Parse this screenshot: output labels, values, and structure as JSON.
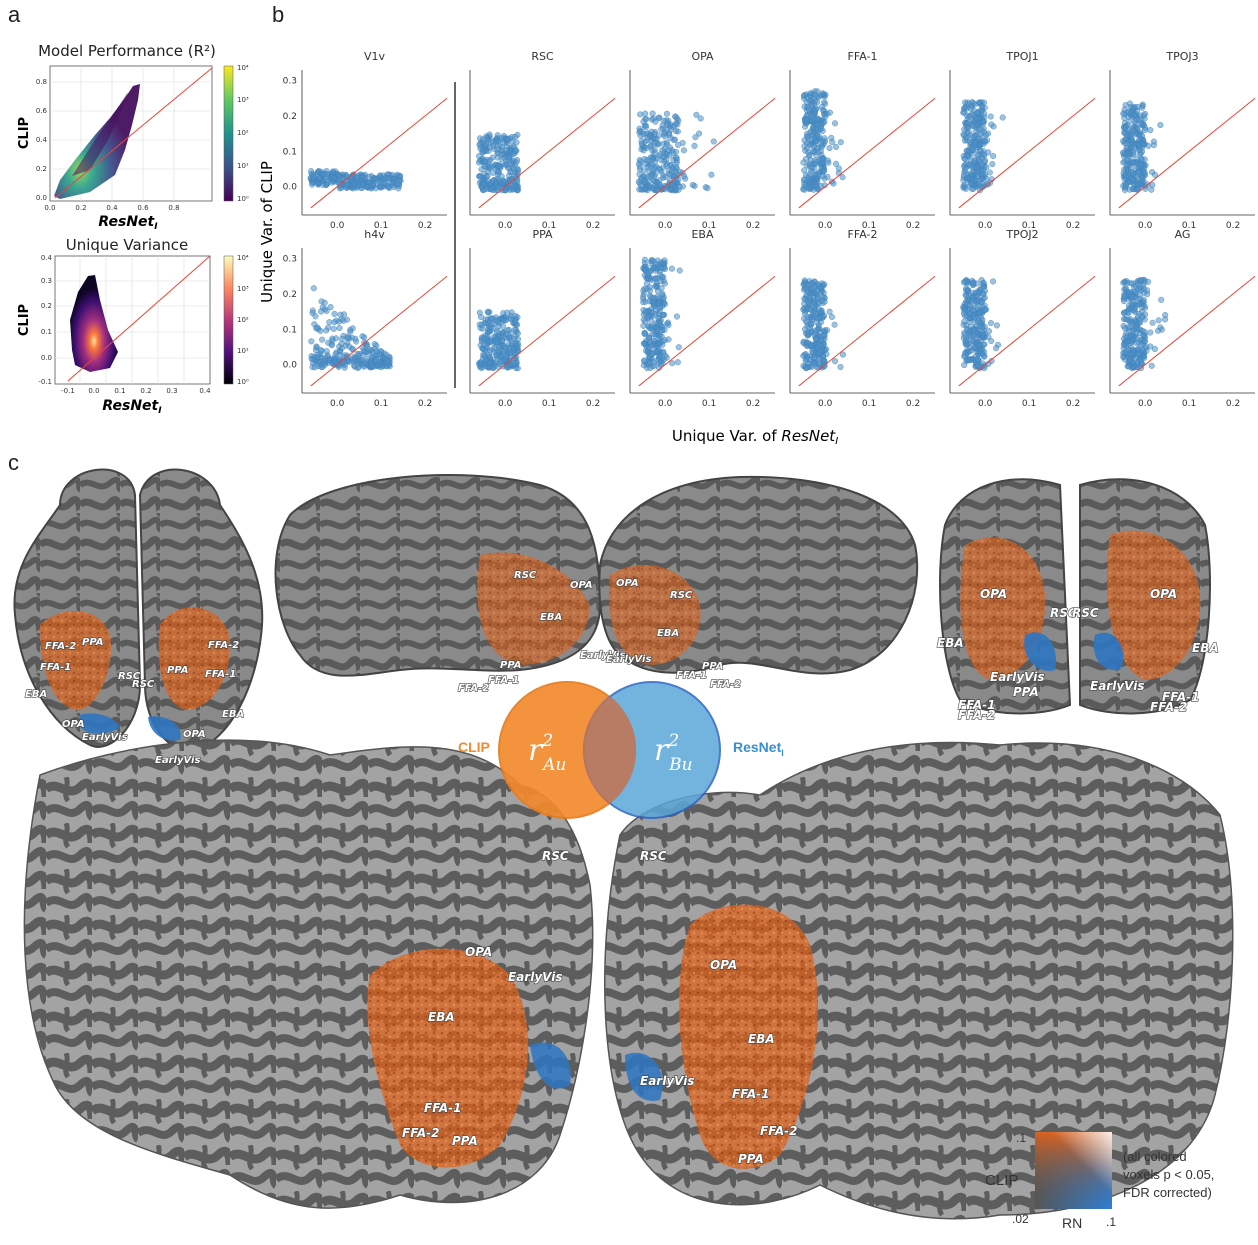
{
  "panels": {
    "a": {
      "letter": "a",
      "top": {
        "title": "Model Performance (R²)",
        "ylabel": "CLIP",
        "xlabel": "ResNet",
        "xlabel_sub": "I",
        "xticks": [
          "0.0",
          "0.2",
          "0.4",
          "0.6",
          "0.8"
        ],
        "yticks": [
          "0.0",
          "0.2",
          "0.4",
          "0.6",
          "0.8"
        ],
        "cbar_ticks": [
          "10⁰",
          "10¹",
          "10²",
          "10³",
          "10⁴"
        ],
        "cmap": [
          "#440154",
          "#3b528b",
          "#21918c",
          "#5ec962",
          "#fde725"
        ]
      },
      "bottom": {
        "title": "Unique Variance",
        "ylabel": "CLIP",
        "xlabel": "ResNet",
        "xlabel_sub": "I",
        "xticks": [
          "-0.1",
          "0.0",
          "0.1",
          "0.2",
          "0.3",
          "0.4"
        ],
        "yticks": [
          "-0.1",
          "0.0",
          "0.1",
          "0.2",
          "0.3",
          "0.4"
        ],
        "cbar_ticks": [
          "10⁰",
          "10¹",
          "10²",
          "10³",
          "10⁴"
        ],
        "cmap": [
          "#000004",
          "#51127c",
          "#b73779",
          "#fc8961",
          "#fcfdbf"
        ]
      }
    },
    "b": {
      "letter": "b",
      "ylabel": "Unique Var. of CLIP",
      "xlabel": "Unique Var. of ",
      "xlabel_model": "ResNet",
      "xlabel_sub": "I",
      "yticks": [
        "0.0",
        "0.1",
        "0.2",
        "0.3"
      ],
      "xticks": [
        "0.0",
        "0.1",
        "0.2"
      ],
      "point_color": "#4a90c8",
      "line_color": "#e8463a",
      "rois_top": [
        "V1v",
        "RSC",
        "OPA",
        "FFA-1",
        "TPOJ1",
        "TPOJ3"
      ],
      "rois_bottom": [
        "h4v",
        "PPA",
        "EBA",
        "FFA-2",
        "TPOJ2",
        "AG"
      ]
    },
    "c": {
      "letter": "c",
      "roi_labels": [
        "FFA-2",
        "PPA",
        "FFA-1",
        "EBA",
        "RSC",
        "OPA",
        "EarlyVis",
        "FFA-2",
        "PPA",
        "FFA-1",
        "RSC",
        "EBA",
        "OPA",
        "EarlyVis",
        "RSC",
        "OPA",
        "EBA",
        "PPA",
        "FFA-1",
        "FFA-2",
        "EarlyVis",
        "OPA",
        "RSC",
        "EBA",
        "EarlyVis",
        "PPA",
        "FFA-1",
        "FFA-2",
        "OPA",
        "RSC",
        "EBA",
        "FFA-1",
        "FFA-2",
        "EarlyVis",
        "RSC",
        "OPA",
        "EarlyVis",
        "EBA",
        "FFA-1",
        "FFA-2",
        "PPA",
        "RSC",
        "OPA",
        "EBA",
        "EarlyVis",
        "FFA-1",
        "FFA-2",
        "PPA"
      ],
      "venn": {
        "left_label": "CLIP",
        "right_label": "ResNet",
        "right_sub": "I",
        "left_color": "#f28a2e",
        "right_color": "#5aa7d8",
        "left_symbol": "r",
        "left_sup": "2",
        "left_subscript": "Au",
        "right_symbol": "r",
        "right_sup": "2",
        "right_subscript": "Bu"
      },
      "legend": {
        "y_label": "CLIP",
        "x_label": "RN",
        "y_top": ".1",
        "y_bottom": ".02",
        "x_right": ".1",
        "note_lines": [
          "(all colored",
          "voxels p < 0.05,",
          "FDR corrected)"
        ]
      }
    }
  }
}
